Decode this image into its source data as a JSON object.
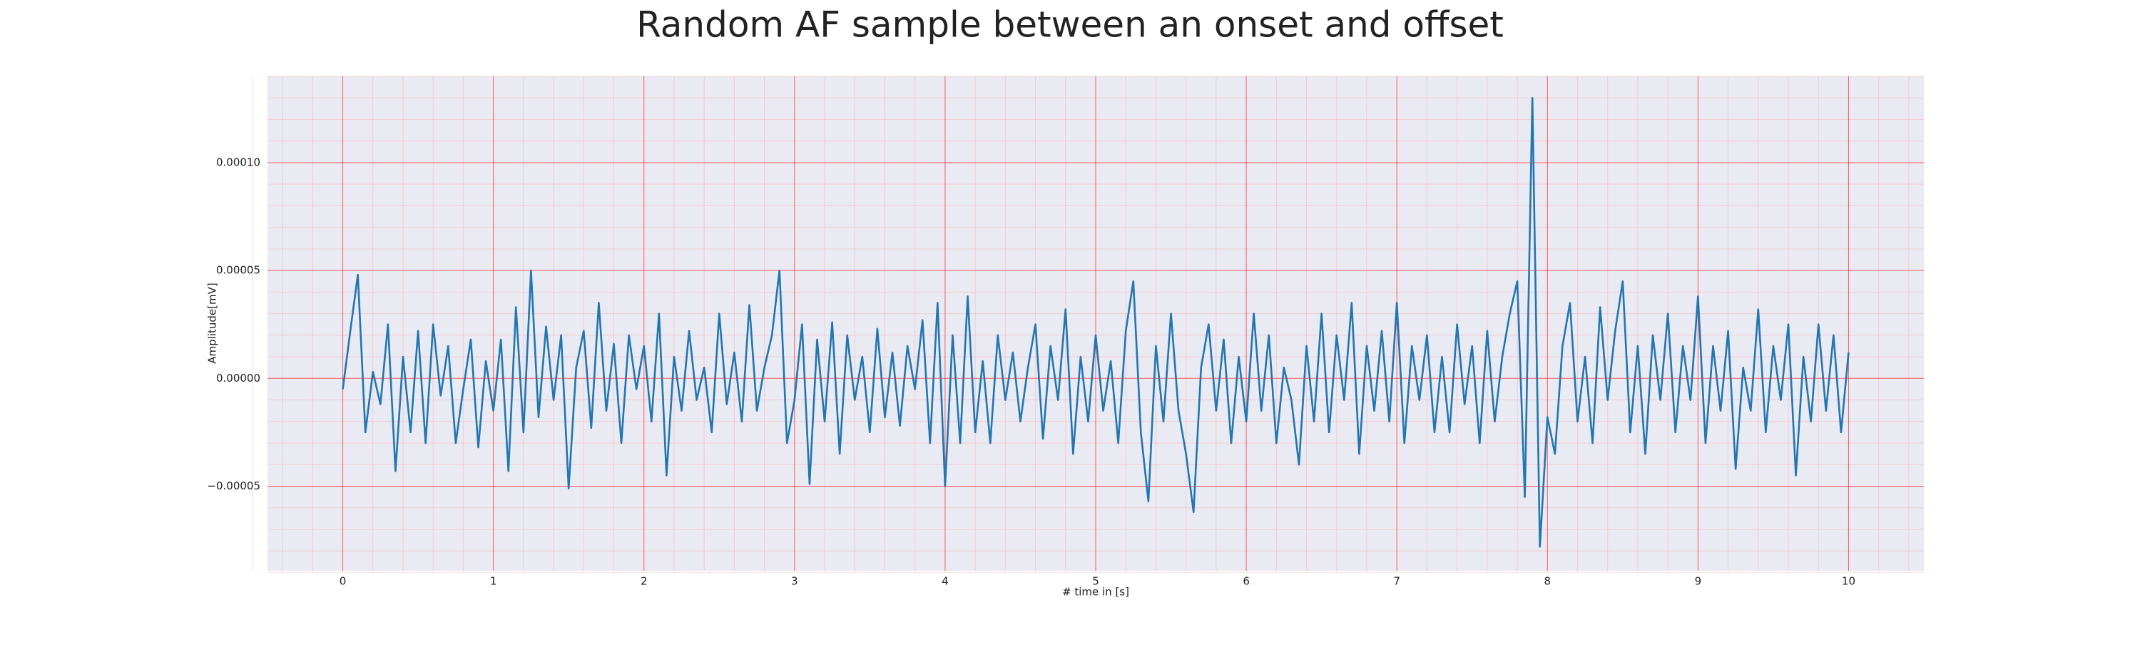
{
  "chart_data": {
    "type": "line",
    "title": "Random AF sample between an onset and offset",
    "x_label": "# time in [s]",
    "y_label": "Amplitude[mV]",
    "grid": true,
    "minor_grid": true,
    "xlim": [
      -0.5,
      10.5
    ],
    "ylim": [
      -8.92e-05,
      0.00014
    ],
    "xticks": [
      0,
      1,
      2,
      3,
      4,
      5,
      6,
      7,
      8,
      9,
      10
    ],
    "yticks": [
      {
        "value": -5e-05,
        "label": "−0.00005"
      },
      {
        "value": 0,
        "label": "0.00000"
      },
      {
        "value": 5e-05,
        "label": "0.00005"
      },
      {
        "value": 0.0001,
        "label": "0.00010"
      }
    ],
    "x": [
      0,
      0.05,
      0.1,
      0.15,
      0.2,
      0.25,
      0.3,
      0.35,
      0.4,
      0.45,
      0.5,
      0.55,
      0.6,
      0.65,
      0.7,
      0.75,
      0.8,
      0.85,
      0.9,
      0.95,
      1,
      1.05,
      1.1,
      1.15,
      1.2,
      1.25,
      1.3,
      1.35,
      1.4,
      1.45,
      1.5,
      1.55,
      1.6,
      1.65,
      1.7,
      1.75,
      1.8,
      1.85,
      1.9,
      1.95,
      2,
      2.05,
      2.1,
      2.15,
      2.2,
      2.25,
      2.3,
      2.35,
      2.4,
      2.45,
      2.5,
      2.55,
      2.6,
      2.65,
      2.7,
      2.75,
      2.8,
      2.85,
      2.9,
      2.95,
      3,
      3.05,
      3.1,
      3.15,
      3.2,
      3.25,
      3.3,
      3.35,
      3.4,
      3.45,
      3.5,
      3.55,
      3.6,
      3.65,
      3.7,
      3.75,
      3.8,
      3.85,
      3.9,
      3.95,
      4,
      4.05,
      4.1,
      4.15,
      4.2,
      4.25,
      4.3,
      4.35,
      4.4,
      4.45,
      4.5,
      4.55,
      4.6,
      4.65,
      4.7,
      4.75,
      4.8,
      4.85,
      4.9,
      4.95,
      5,
      5.05,
      5.1,
      5.15,
      5.2,
      5.25,
      5.3,
      5.35,
      5.4,
      5.45,
      5.5,
      5.55,
      5.6,
      5.65,
      5.7,
      5.75,
      5.8,
      5.85,
      5.9,
      5.95,
      6,
      6.05,
      6.1,
      6.15,
      6.2,
      6.25,
      6.3,
      6.35,
      6.4,
      6.45,
      6.5,
      6.55,
      6.6,
      6.65,
      6.7,
      6.75,
      6.8,
      6.85,
      6.9,
      6.95,
      7,
      7.05,
      7.1,
      7.15,
      7.2,
      7.25,
      7.3,
      7.35,
      7.4,
      7.45,
      7.5,
      7.55,
      7.6,
      7.65,
      7.7,
      7.75,
      7.8,
      7.85,
      7.9,
      7.95,
      8,
      8.05,
      8.1,
      8.15,
      8.2,
      8.25,
      8.3,
      8.35,
      8.4,
      8.45,
      8.5,
      8.55,
      8.6,
      8.65,
      8.7,
      8.75,
      8.8,
      8.85,
      8.9,
      8.95,
      9,
      9.05,
      9.1,
      9.15,
      9.2,
      9.25,
      9.3,
      9.35,
      9.4,
      9.45,
      9.5,
      9.55,
      9.6,
      9.65,
      9.7,
      9.75,
      9.8,
      9.85,
      9.9,
      9.95,
      10
    ],
    "series": [
      {
        "name": "AF sample",
        "color": "#1f77b4",
        "values": [
          -5e-06,
          2.2e-05,
          4.8e-05,
          -2.5e-05,
          3e-06,
          -1.2e-05,
          2.5e-05,
          -4.3e-05,
          1e-05,
          -2.5e-05,
          2.2e-05,
          -3e-05,
          2.5e-05,
          -8e-06,
          1.5e-05,
          -3e-05,
          -5e-06,
          1.8e-05,
          -3.2e-05,
          8e-06,
          -1.5e-05,
          1.8e-05,
          -4.3e-05,
          3.3e-05,
          -2.5e-05,
          5e-05,
          -1.8e-05,
          2.4e-05,
          -1e-05,
          2e-05,
          -5.1e-05,
          5e-06,
          2.2e-05,
          -2.3e-05,
          3.5e-05,
          -1.5e-05,
          1.6e-05,
          -3e-05,
          2e-05,
          -5e-06,
          1.5e-05,
          -2e-05,
          3e-05,
          -4.5e-05,
          1e-05,
          -1.5e-05,
          2.2e-05,
          -1e-05,
          5e-06,
          -2.5e-05,
          3e-05,
          -1.2e-05,
          1.2e-05,
          -2e-05,
          3.4e-05,
          -1.5e-05,
          5e-06,
          2e-05,
          5e-05,
          -3e-05,
          -1e-05,
          2.5e-05,
          -4.9e-05,
          1.8e-05,
          -2e-05,
          2.6e-05,
          -3.5e-05,
          2e-05,
          -1e-05,
          1e-05,
          -2.5e-05,
          2.3e-05,
          -1.8e-05,
          1.2e-05,
          -2.2e-05,
          1.5e-05,
          -5e-06,
          2.7e-05,
          -3e-05,
          3.5e-05,
          -5e-05,
          2e-05,
          -3e-05,
          3.8e-05,
          -2.5e-05,
          8e-06,
          -3e-05,
          2e-05,
          -1e-05,
          1.2e-05,
          -2e-05,
          5e-06,
          2.5e-05,
          -2.8e-05,
          1.5e-05,
          -1e-05,
          3.2e-05,
          -3.5e-05,
          1e-05,
          -2e-05,
          2e-05,
          -1.5e-05,
          8e-06,
          -3e-05,
          2.2e-05,
          4.5e-05,
          -2.5e-05,
          -5.7e-05,
          1.5e-05,
          -2e-05,
          3e-05,
          -1.5e-05,
          -3.5e-05,
          -6.2e-05,
          5e-06,
          2.5e-05,
          -1.5e-05,
          1.8e-05,
          -3e-05,
          1e-05,
          -2e-05,
          3e-05,
          -1.5e-05,
          2e-05,
          -3e-05,
          5e-06,
          -1e-05,
          -4e-05,
          1.5e-05,
          -2e-05,
          3e-05,
          -2.5e-05,
          2e-05,
          -1e-05,
          3.5e-05,
          -3.5e-05,
          1.5e-05,
          -1.5e-05,
          2.2e-05,
          -2e-05,
          3.5e-05,
          -3e-05,
          1.5e-05,
          -1e-05,
          2e-05,
          -2.5e-05,
          1e-05,
          -2.5e-05,
          2.5e-05,
          -1.2e-05,
          1.5e-05,
          -3e-05,
          2.2e-05,
          -2e-05,
          1e-05,
          3e-05,
          4.5e-05,
          -5.5e-05,
          0.00013,
          -7.8e-05,
          -1.8e-05,
          -3.5e-05,
          1.5e-05,
          3.5e-05,
          -2e-05,
          1e-05,
          -3e-05,
          3.3e-05,
          -1e-05,
          2.2e-05,
          4.5e-05,
          -2.5e-05,
          1.5e-05,
          -3.5e-05,
          2e-05,
          -1e-05,
          3e-05,
          -2.5e-05,
          1.5e-05,
          -1e-05,
          3.8e-05,
          -3e-05,
          1.5e-05,
          -1.5e-05,
          2.2e-05,
          -4.2e-05,
          5e-06,
          -1.5e-05,
          3.2e-05,
          -2.5e-05,
          1.5e-05,
          -1e-05,
          2.5e-05,
          -4.5e-05,
          1e-05,
          -2e-05,
          2.5e-05,
          -1.5e-05,
          2e-05,
          -2.5e-05,
          1.2e-05
        ]
      }
    ]
  }
}
